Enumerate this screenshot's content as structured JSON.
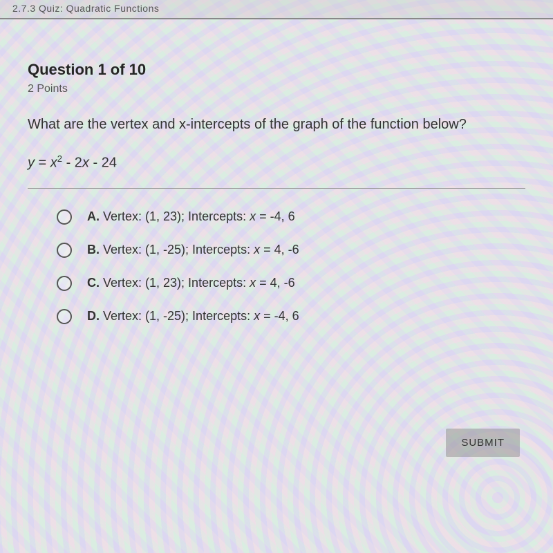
{
  "header": {
    "crumb": "2.7.3 Quiz: Quadratic Functions"
  },
  "question": {
    "number_label": "Question 1 of 10",
    "points_label": "2 Points",
    "prompt_pre": "What are the vertex and ",
    "prompt_var": "x",
    "prompt_post": "-intercepts of the graph of the function below?",
    "equation": {
      "lhs": "y",
      "eq": " = ",
      "x": "x",
      "exp": "2",
      "rest": " - 2",
      "x2": "x",
      "tail": " - 24"
    }
  },
  "choices": [
    {
      "letter": "A.",
      "pre": " Vertex: (1, 23); Intercepts: ",
      "var": "x",
      "post": " = -4, 6"
    },
    {
      "letter": "B.",
      "pre": " Vertex: (1, -25); Intercepts: ",
      "var": "x",
      "post": " = 4, -6"
    },
    {
      "letter": "C.",
      "pre": " Vertex: (1, 23); Intercepts: ",
      "var": "x",
      "post": " = 4, -6"
    },
    {
      "letter": "D.",
      "pre": " Vertex: (1, -25); Intercepts: ",
      "var": "x",
      "post": " = -4, 6"
    }
  ],
  "buttons": {
    "submit": "SUBMIT"
  },
  "colors": {
    "text_primary": "#333333",
    "text_muted": "#555555",
    "divider": "#999999",
    "radio_border": "#555555",
    "submit_bg": "rgba(150,150,150,0.55)"
  }
}
